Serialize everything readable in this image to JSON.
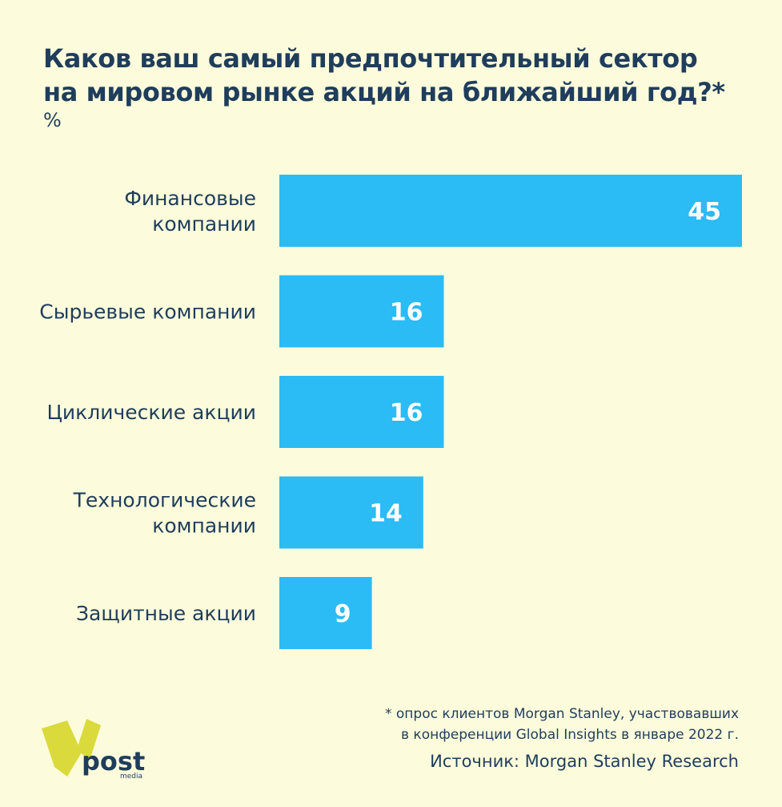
{
  "title_lines": [
    "Каков ваш самый предпочтительный сектор",
    "на мировом рынке акций на ближайший год?*"
  ],
  "unit": "%",
  "chart_data": {
    "type": "bar",
    "orientation": "horizontal",
    "title": "Каков ваш самый предпочтительный сектор на мировом рынке акций на ближайший год?*",
    "ylabel": "%",
    "categories": [
      [
        "Финансовые",
        "компании"
      ],
      [
        "Сырьевые компании"
      ],
      [
        "Циклические акции"
      ],
      [
        "Технологические",
        "компании"
      ],
      [
        "Защитные акции"
      ]
    ],
    "values": [
      45,
      16,
      16,
      14,
      9
    ],
    "data_labels": [
      "45",
      "16",
      "16",
      "14",
      "9"
    ],
    "xlim": [
      0,
      45
    ],
    "grid": false,
    "bar_color": "#2bbbf5"
  },
  "footnote_lines": [
    "* опрос клиентов Morgan Stanley, участвовавших",
    "в конференции Global Insights в январе 2022 г."
  ],
  "source": "Источник: Morgan Stanley Research",
  "logo": {
    "word": "post",
    "sub": "media"
  },
  "colors": {
    "background": "#fcfcdc",
    "text": "#1f3d5c",
    "bar": "#2bbbf5",
    "logo_accent": "#dada3c"
  }
}
